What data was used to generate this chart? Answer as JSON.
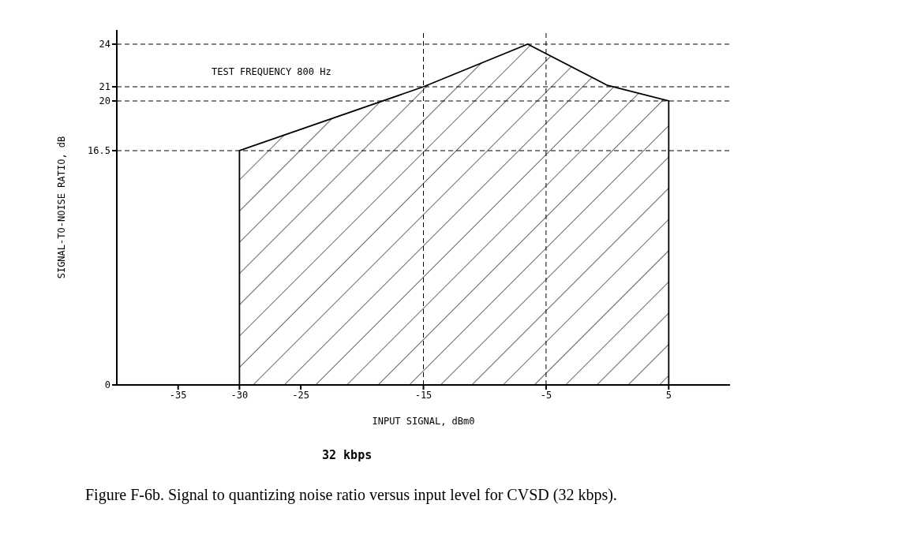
{
  "chart_data": {
    "type": "area",
    "xlabel": "INPUT SIGNAL, dBm0",
    "ylabel": "SIGNAL-TO-NOISE RATIO, dB",
    "subtitle": "32 kbps",
    "x": [
      -30,
      -30,
      -15,
      -6.5,
      0,
      5,
      5
    ],
    "series": [
      {
        "color": "#000000",
        "values": [
          0,
          16.5,
          21,
          24,
          21.1,
          20,
          0
        ]
      }
    ],
    "xlim": [
      -40,
      10
    ],
    "xticks": [
      -35,
      -30,
      -25,
      -15,
      -5,
      5
    ],
    "ylim": [
      0,
      25
    ],
    "yticks": [
      0,
      16.5,
      20,
      21,
      24
    ],
    "ref_lines": [
      {
        "axis": "y",
        "value": 24,
        "line_style": "dashed",
        "color": "#000000"
      },
      {
        "axis": "y",
        "value": 21,
        "line_style": "dashed",
        "color": "#000000"
      },
      {
        "axis": "y",
        "value": 20,
        "line_style": "dashed",
        "color": "#000000"
      },
      {
        "axis": "y",
        "value": 16.5,
        "line_style": "dashed",
        "color": "#000000"
      },
      {
        "axis": "x",
        "value": -15,
        "line_style": "dashed",
        "color": "#000000"
      },
      {
        "axis": "x",
        "value": -5,
        "line_style": "dashed",
        "color": "#000000"
      }
    ],
    "annotations": [
      "TEST FREQUENCY 800 Hz",
      "Figure F-6b.  Signal to quantizing noise ratio versus input level for CVSD (32 kbps)."
    ],
    "grid": false,
    "legend": false
  }
}
